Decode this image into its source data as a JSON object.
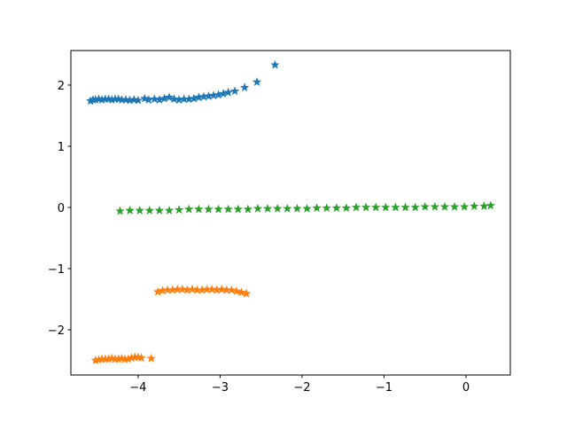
{
  "chart_data": {
    "type": "scatter",
    "marker": "star",
    "xlim": [
      -4.82,
      0.54
    ],
    "ylim": [
      -2.74,
      2.565
    ],
    "xticks": [
      {
        "value": -4,
        "label": "−4"
      },
      {
        "value": -3,
        "label": "−3"
      },
      {
        "value": -2,
        "label": "−2"
      },
      {
        "value": -1,
        "label": "−1"
      },
      0
    ],
    "yticks": [
      {
        "value": -2,
        "label": "−2"
      },
      {
        "value": -1,
        "label": "−1"
      },
      0,
      1,
      2
    ],
    "series": [
      {
        "color": "#1f77b4",
        "x": [
          -4.58,
          -4.55,
          -4.52,
          -4.48,
          -4.44,
          -4.4,
          -4.36,
          -4.32,
          -4.28,
          -4.24,
          -4.2,
          -4.15,
          -4.1,
          -4.05,
          -4.0,
          -3.92,
          -3.87,
          -3.8,
          -3.74,
          -3.68,
          -3.62,
          -3.56,
          -3.5,
          -3.44,
          -3.38,
          -3.32,
          -3.26,
          -3.2,
          -3.14,
          -3.08,
          -3.02,
          -2.96,
          -2.9,
          -2.82,
          -2.7,
          -2.55,
          -2.33
        ],
        "y": [
          1.74,
          1.76,
          1.76,
          1.77,
          1.76,
          1.77,
          1.77,
          1.76,
          1.77,
          1.77,
          1.76,
          1.76,
          1.75,
          1.76,
          1.75,
          1.78,
          1.76,
          1.77,
          1.76,
          1.78,
          1.8,
          1.77,
          1.76,
          1.77,
          1.77,
          1.78,
          1.8,
          1.81,
          1.82,
          1.83,
          1.84,
          1.86,
          1.88,
          1.9,
          1.96,
          2.05,
          2.33
        ]
      },
      {
        "color": "#ff7f0e",
        "x": [
          -4.52,
          -4.48,
          -4.44,
          -4.4,
          -4.36,
          -4.32,
          -4.28,
          -4.24,
          -4.2,
          -4.16,
          -4.12,
          -4.08,
          -4.04,
          -4.0,
          -3.96,
          -3.84,
          -3.76,
          -3.7,
          -3.64,
          -3.58,
          -3.52,
          -3.46,
          -3.4,
          -3.34,
          -3.28,
          -3.22,
          -3.16,
          -3.1,
          -3.04,
          -2.98,
          -2.92,
          -2.86,
          -2.8,
          -2.74,
          -2.68
        ],
        "y": [
          -2.5,
          -2.49,
          -2.48,
          -2.48,
          -2.48,
          -2.47,
          -2.48,
          -2.48,
          -2.47,
          -2.48,
          -2.48,
          -2.46,
          -2.45,
          -2.45,
          -2.46,
          -2.47,
          -1.38,
          -1.36,
          -1.35,
          -1.35,
          -1.34,
          -1.34,
          -1.35,
          -1.34,
          -1.35,
          -1.35,
          -1.34,
          -1.34,
          -1.35,
          -1.34,
          -1.35,
          -1.35,
          -1.37,
          -1.39,
          -1.41
        ]
      },
      {
        "color": "#2ca02c",
        "x": [
          -4.22,
          -4.1,
          -3.98,
          -3.86,
          -3.74,
          -3.62,
          -3.5,
          -3.38,
          -3.26,
          -3.14,
          -3.02,
          -2.9,
          -2.78,
          -2.66,
          -2.54,
          -2.42,
          -2.3,
          -2.18,
          -2.06,
          -1.94,
          -1.82,
          -1.7,
          -1.58,
          -1.46,
          -1.34,
          -1.22,
          -1.1,
          -0.98,
          -0.86,
          -0.74,
          -0.62,
          -0.5,
          -0.38,
          -0.26,
          -0.14,
          -0.02,
          0.1,
          0.22,
          0.3
        ],
        "y": [
          -0.06,
          -0.05,
          -0.05,
          -0.05,
          -0.05,
          -0.05,
          -0.04,
          -0.03,
          -0.03,
          -0.03,
          -0.03,
          -0.03,
          -0.03,
          -0.03,
          -0.02,
          -0.02,
          -0.02,
          -0.02,
          -0.02,
          -0.02,
          -0.01,
          -0.01,
          -0.01,
          -0.01,
          0.0,
          0.0,
          0.0,
          0.0,
          0.0,
          0.0,
          0.0,
          0.01,
          0.01,
          0.01,
          0.01,
          0.01,
          0.02,
          0.02,
          0.03
        ]
      }
    ]
  }
}
